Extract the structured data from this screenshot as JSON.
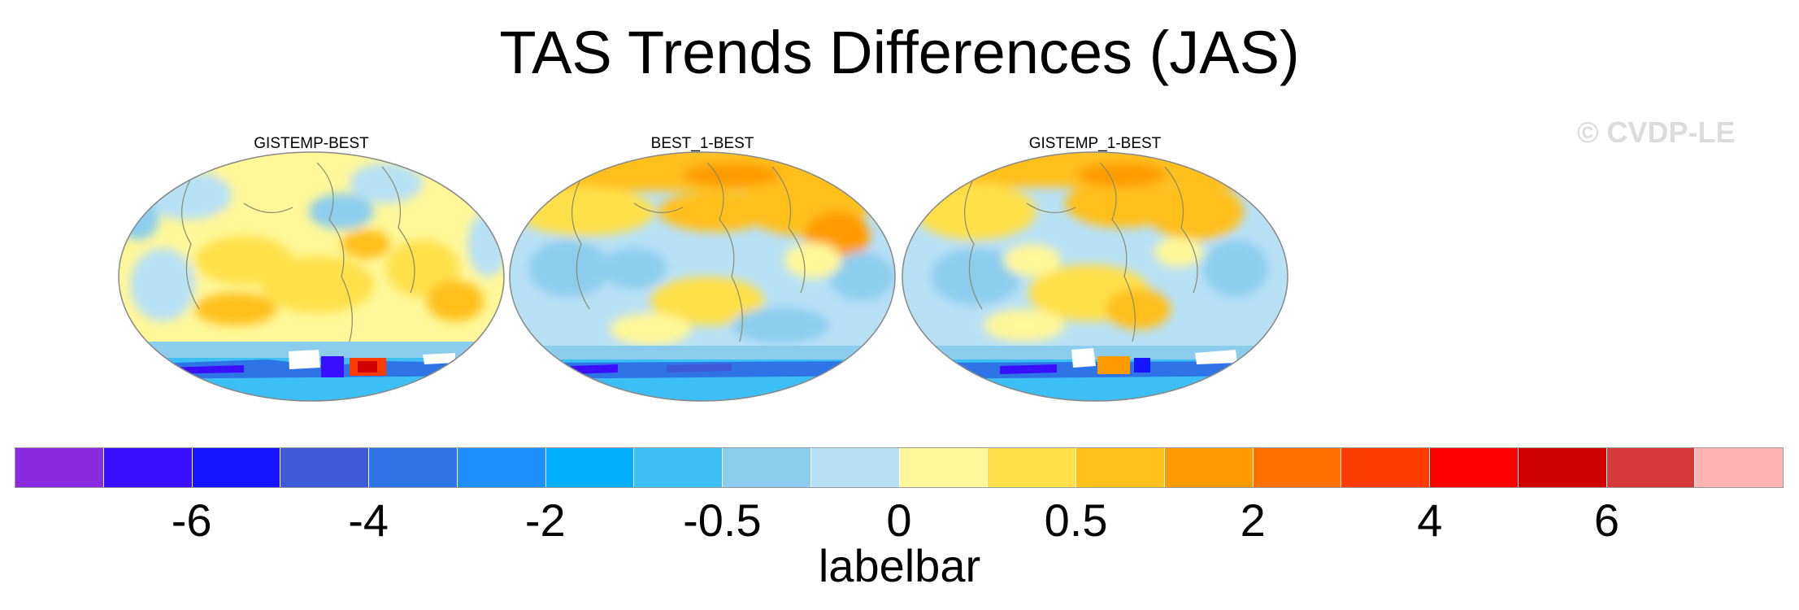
{
  "title": "TAS Trends Differences (JAS)",
  "watermark": "© CVDP-LE",
  "panels": [
    {
      "title": "GISTEMP-BEST",
      "anomaly": "warm"
    },
    {
      "title": "BEST_1-BEST",
      "anomaly": "mixed"
    },
    {
      "title": "GISTEMP_1-BEST",
      "anomaly": "mixed"
    }
  ],
  "colorbar": {
    "label": "labelbar",
    "colors": [
      "#8a2be2",
      "#3a0fff",
      "#1414ff",
      "#3d5ad9",
      "#2f74e6",
      "#1e8fff",
      "#00b0ff",
      "#3bbff5",
      "#8ccdee",
      "#b8e0f5",
      "#fff799",
      "#ffe04a",
      "#ffc01a",
      "#ff9b00",
      "#ff7000",
      "#ff3c00",
      "#ff0000",
      "#d10000",
      "#d63a3a",
      "#ffb3b3"
    ],
    "ticks": [
      {
        "label": "-6",
        "boundary": 2
      },
      {
        "label": "-4",
        "boundary": 4
      },
      {
        "label": "-2",
        "boundary": 6
      },
      {
        "label": "-0.5",
        "boundary": 8
      },
      {
        "label": "0",
        "boundary": 10
      },
      {
        "label": "0.5",
        "boundary": 12
      },
      {
        "label": "2",
        "boundary": 14
      },
      {
        "label": "4",
        "boundary": 16
      },
      {
        "label": "6",
        "boundary": 18
      }
    ]
  }
}
